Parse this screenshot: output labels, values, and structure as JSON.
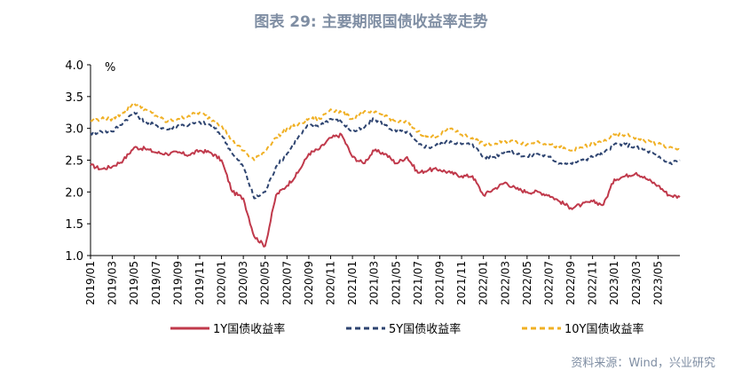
{
  "header": {
    "title": "图表 29: 主要期限国债收益率走势"
  },
  "footer": {
    "source": "资料来源：Wind，兴业研究"
  },
  "chart_data": {
    "type": "line",
    "title": "图表 29: 主要期限国债收益率走势",
    "ylabel": "%",
    "xlabel": "",
    "ylim": [
      1.0,
      4.0
    ],
    "yticks": [
      "4.0",
      "3.5",
      "3.0",
      "2.5",
      "2.0",
      "1.5",
      "1.0"
    ],
    "x_range": [
      "2019/01",
      "2023/07"
    ],
    "xticks": [
      "2019/01",
      "2019/03",
      "2019/05",
      "2019/07",
      "2019/09",
      "2019/11",
      "2020/01",
      "2020/03",
      "2020/05",
      "2020/07",
      "2020/09",
      "2020/11",
      "2021/01",
      "2021/03",
      "2021/05",
      "2021/07",
      "2021/09",
      "2021/11",
      "2022/01",
      "2022/03",
      "2022/05",
      "2022/07",
      "2022/09",
      "2022/11",
      "2023/01",
      "2023/03",
      "2023/05"
    ],
    "legend_position": "bottom",
    "grid": false,
    "series": [
      {
        "name": "1Y国债收益率",
        "color": "#c0394b",
        "style": "solid",
        "x": [
          "2019/01",
          "2019/02",
          "2019/03",
          "2019/04",
          "2019/05",
          "2019/06",
          "2019/07",
          "2019/08",
          "2019/09",
          "2019/10",
          "2019/11",
          "2019/12",
          "2020/01",
          "2020/02",
          "2020/03",
          "2020/04",
          "2020/05",
          "2020/06",
          "2020/07",
          "2020/08",
          "2020/09",
          "2020/10",
          "2020/11",
          "2020/12",
          "2021/01",
          "2021/02",
          "2021/03",
          "2021/04",
          "2021/05",
          "2021/06",
          "2021/07",
          "2021/08",
          "2021/09",
          "2021/10",
          "2021/11",
          "2021/12",
          "2022/01",
          "2022/02",
          "2022/03",
          "2022/04",
          "2022/05",
          "2022/06",
          "2022/07",
          "2022/08",
          "2022/09",
          "2022/10",
          "2022/11",
          "2022/12",
          "2023/01",
          "2023/02",
          "2023/03",
          "2023/04",
          "2023/05",
          "2023/06",
          "2023/07"
        ],
        "values": [
          2.42,
          2.36,
          2.4,
          2.5,
          2.7,
          2.68,
          2.62,
          2.6,
          2.62,
          2.58,
          2.65,
          2.62,
          2.5,
          2.0,
          1.9,
          1.3,
          1.15,
          1.95,
          2.1,
          2.3,
          2.6,
          2.68,
          2.85,
          2.9,
          2.55,
          2.45,
          2.65,
          2.6,
          2.45,
          2.55,
          2.3,
          2.35,
          2.35,
          2.3,
          2.25,
          2.25,
          1.95,
          2.05,
          2.15,
          2.05,
          2.0,
          2.0,
          1.95,
          1.85,
          1.75,
          1.8,
          1.85,
          1.8,
          2.2,
          2.25,
          2.3,
          2.2,
          2.1,
          1.95,
          1.92
        ]
      },
      {
        "name": "5Y国债收益率",
        "color": "#2e4470",
        "style": "dashed",
        "x": [
          "2019/01",
          "2019/02",
          "2019/03",
          "2019/04",
          "2019/05",
          "2019/06",
          "2019/07",
          "2019/08",
          "2019/09",
          "2019/10",
          "2019/11",
          "2019/12",
          "2020/01",
          "2020/02",
          "2020/03",
          "2020/04",
          "2020/05",
          "2020/06",
          "2020/07",
          "2020/08",
          "2020/09",
          "2020/10",
          "2020/11",
          "2020/12",
          "2021/01",
          "2021/02",
          "2021/03",
          "2021/04",
          "2021/05",
          "2021/06",
          "2021/07",
          "2021/08",
          "2021/09",
          "2021/10",
          "2021/11",
          "2021/12",
          "2022/01",
          "2022/02",
          "2022/03",
          "2022/04",
          "2022/05",
          "2022/06",
          "2022/07",
          "2022/08",
          "2022/09",
          "2022/10",
          "2022/11",
          "2022/12",
          "2023/01",
          "2023/02",
          "2023/03",
          "2023/04",
          "2023/05",
          "2023/06",
          "2023/07"
        ],
        "values": [
          2.92,
          2.95,
          2.95,
          3.1,
          3.25,
          3.1,
          3.05,
          2.98,
          3.05,
          3.05,
          3.1,
          3.05,
          2.9,
          2.6,
          2.4,
          1.9,
          2.0,
          2.4,
          2.6,
          2.85,
          3.05,
          3.05,
          3.15,
          3.1,
          2.95,
          3.0,
          3.15,
          3.05,
          2.95,
          2.95,
          2.75,
          2.7,
          2.75,
          2.8,
          2.75,
          2.75,
          2.55,
          2.55,
          2.65,
          2.6,
          2.55,
          2.6,
          2.55,
          2.45,
          2.45,
          2.5,
          2.55,
          2.6,
          2.75,
          2.75,
          2.7,
          2.65,
          2.55,
          2.45,
          2.5
        ]
      },
      {
        "name": "10Y国债收益率",
        "color": "#f0b024",
        "style": "dashed",
        "x": [
          "2019/01",
          "2019/02",
          "2019/03",
          "2019/04",
          "2019/05",
          "2019/06",
          "2019/07",
          "2019/08",
          "2019/09",
          "2019/10",
          "2019/11",
          "2019/12",
          "2020/01",
          "2020/02",
          "2020/03",
          "2020/04",
          "2020/05",
          "2020/06",
          "2020/07",
          "2020/08",
          "2020/09",
          "2020/10",
          "2020/11",
          "2020/12",
          "2021/01",
          "2021/02",
          "2021/03",
          "2021/04",
          "2021/05",
          "2021/06",
          "2021/07",
          "2021/08",
          "2021/09",
          "2021/10",
          "2021/11",
          "2021/12",
          "2022/01",
          "2022/02",
          "2022/03",
          "2022/04",
          "2022/05",
          "2022/06",
          "2022/07",
          "2022/08",
          "2022/09",
          "2022/10",
          "2022/11",
          "2022/12",
          "2023/01",
          "2023/02",
          "2023/03",
          "2023/04",
          "2023/05",
          "2023/06",
          "2023/07"
        ],
        "values": [
          3.12,
          3.15,
          3.15,
          3.25,
          3.4,
          3.3,
          3.2,
          3.1,
          3.15,
          3.2,
          3.25,
          3.15,
          3.05,
          2.8,
          2.65,
          2.5,
          2.65,
          2.85,
          3.0,
          3.05,
          3.15,
          3.15,
          3.3,
          3.25,
          3.15,
          3.25,
          3.25,
          3.2,
          3.1,
          3.1,
          2.95,
          2.85,
          2.9,
          3.0,
          2.9,
          2.85,
          2.75,
          2.75,
          2.8,
          2.8,
          2.75,
          2.8,
          2.75,
          2.7,
          2.65,
          2.7,
          2.75,
          2.8,
          2.9,
          2.9,
          2.85,
          2.8,
          2.75,
          2.7,
          2.65
        ]
      }
    ]
  }
}
